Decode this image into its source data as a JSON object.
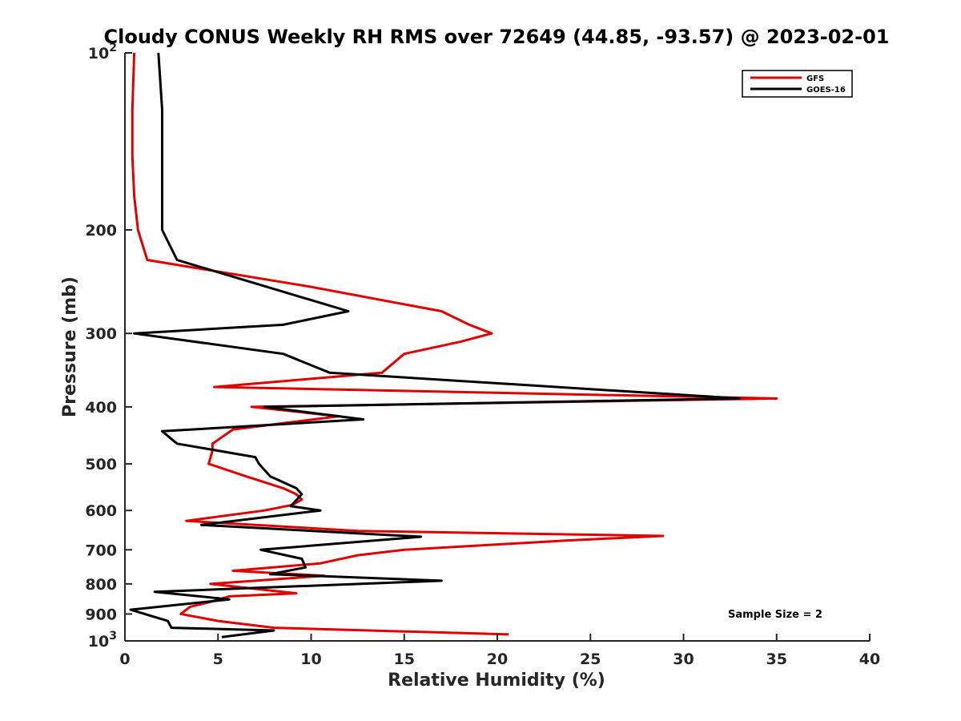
{
  "chart_data": {
    "type": "line",
    "title": "Cloudy CONUS Weekly RH RMS over 72649 (44.85, -93.57) @ 2023-02-01",
    "xlabel": "Relative Humidity (%)",
    "ylabel": "Pressure (mb)",
    "xlim": [
      0,
      40
    ],
    "ylim": [
      100,
      1000
    ],
    "y_scale": "log",
    "y_reversed": true,
    "x_ticks": [
      "0",
      "5",
      "10",
      "15",
      "20",
      "25",
      "30",
      "35",
      "40"
    ],
    "y_ticks": [
      {
        "value": 100,
        "label": "10",
        "sup": "2"
      },
      {
        "value": 200,
        "label": "200"
      },
      {
        "value": 300,
        "label": "300"
      },
      {
        "value": 400,
        "label": "400"
      },
      {
        "value": 500,
        "label": "500"
      },
      {
        "value": 600,
        "label": "600"
      },
      {
        "value": 700,
        "label": "700"
      },
      {
        "value": 800,
        "label": "800"
      },
      {
        "value": 900,
        "label": "900"
      },
      {
        "value": 1000,
        "label": "10",
        "sup": "3"
      }
    ],
    "grid": false,
    "legend_position": "top-right",
    "annotation": "Sample Size = 2",
    "series": [
      {
        "name": "GFS",
        "color": "#e00000",
        "points": [
          [
            0.5,
            100
          ],
          [
            0.4,
            125
          ],
          [
            0.4,
            150
          ],
          [
            0.5,
            175
          ],
          [
            0.7,
            200
          ],
          [
            1.2,
            225
          ],
          [
            10.0,
            250
          ],
          [
            17.0,
            275
          ],
          [
            18.5,
            290
          ],
          [
            19.7,
            300
          ],
          [
            18.0,
            310
          ],
          [
            15.0,
            325
          ],
          [
            13.8,
            350
          ],
          [
            4.8,
            370
          ],
          [
            35.0,
            387
          ],
          [
            6.8,
            400
          ],
          [
            11.5,
            415
          ],
          [
            5.8,
            437
          ],
          [
            4.7,
            462
          ],
          [
            4.7,
            475
          ],
          [
            4.5,
            500
          ],
          [
            6.5,
            525
          ],
          [
            8.5,
            550
          ],
          [
            9.2,
            563
          ],
          [
            9.5,
            575
          ],
          [
            9.0,
            587
          ],
          [
            7.5,
            600
          ],
          [
            3.3,
            625
          ],
          [
            12.5,
            650
          ],
          [
            28.9,
            663
          ],
          [
            23.7,
            675
          ],
          [
            15.0,
            700
          ],
          [
            12.5,
            715
          ],
          [
            10.5,
            738
          ],
          [
            5.8,
            760
          ],
          [
            10.7,
            775
          ],
          [
            4.6,
            800
          ],
          [
            9.2,
            830
          ],
          [
            5.6,
            840
          ],
          [
            4.5,
            860
          ],
          [
            3.5,
            875
          ],
          [
            3.0,
            900
          ],
          [
            5.0,
            925
          ],
          [
            8.0,
            950
          ],
          [
            20.6,
            975
          ]
        ]
      },
      {
        "name": "GOES-16",
        "color": "#000000",
        "points": [
          [
            1.8,
            100
          ],
          [
            2.0,
            125
          ],
          [
            2.0,
            150
          ],
          [
            2.0,
            175
          ],
          [
            2.0,
            200
          ],
          [
            2.8,
            225
          ],
          [
            12.0,
            275
          ],
          [
            8.5,
            290
          ],
          [
            0.5,
            300
          ],
          [
            8.5,
            325
          ],
          [
            11.0,
            350
          ],
          [
            33.0,
            387
          ],
          [
            7.5,
            400
          ],
          [
            12.8,
            420
          ],
          [
            2.0,
            440
          ],
          [
            2.8,
            462
          ],
          [
            7.0,
            487
          ],
          [
            7.2,
            500
          ],
          [
            7.8,
            525
          ],
          [
            9.2,
            550
          ],
          [
            9.5,
            563
          ],
          [
            8.9,
            590
          ],
          [
            10.5,
            600
          ],
          [
            4.1,
            635
          ],
          [
            15.9,
            665
          ],
          [
            7.3,
            700
          ],
          [
            9.5,
            725
          ],
          [
            9.7,
            750
          ],
          [
            7.8,
            770
          ],
          [
            17.0,
            790
          ],
          [
            1.6,
            825
          ],
          [
            5.6,
            850
          ],
          [
            0.3,
            885
          ],
          [
            2.3,
            925
          ],
          [
            2.5,
            950
          ],
          [
            8.0,
            960
          ],
          [
            5.2,
            985
          ]
        ]
      }
    ]
  }
}
